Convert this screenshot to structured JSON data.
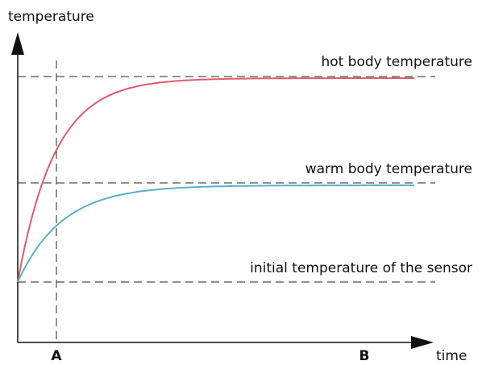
{
  "axes": {
    "y_label": "temperature",
    "x_label": "time"
  },
  "levels": {
    "hot": "hot body temperature",
    "warm": "warm body temperature",
    "initial": "initial temperature of the sensor"
  },
  "markers": {
    "a": "A",
    "b": "B"
  }
}
